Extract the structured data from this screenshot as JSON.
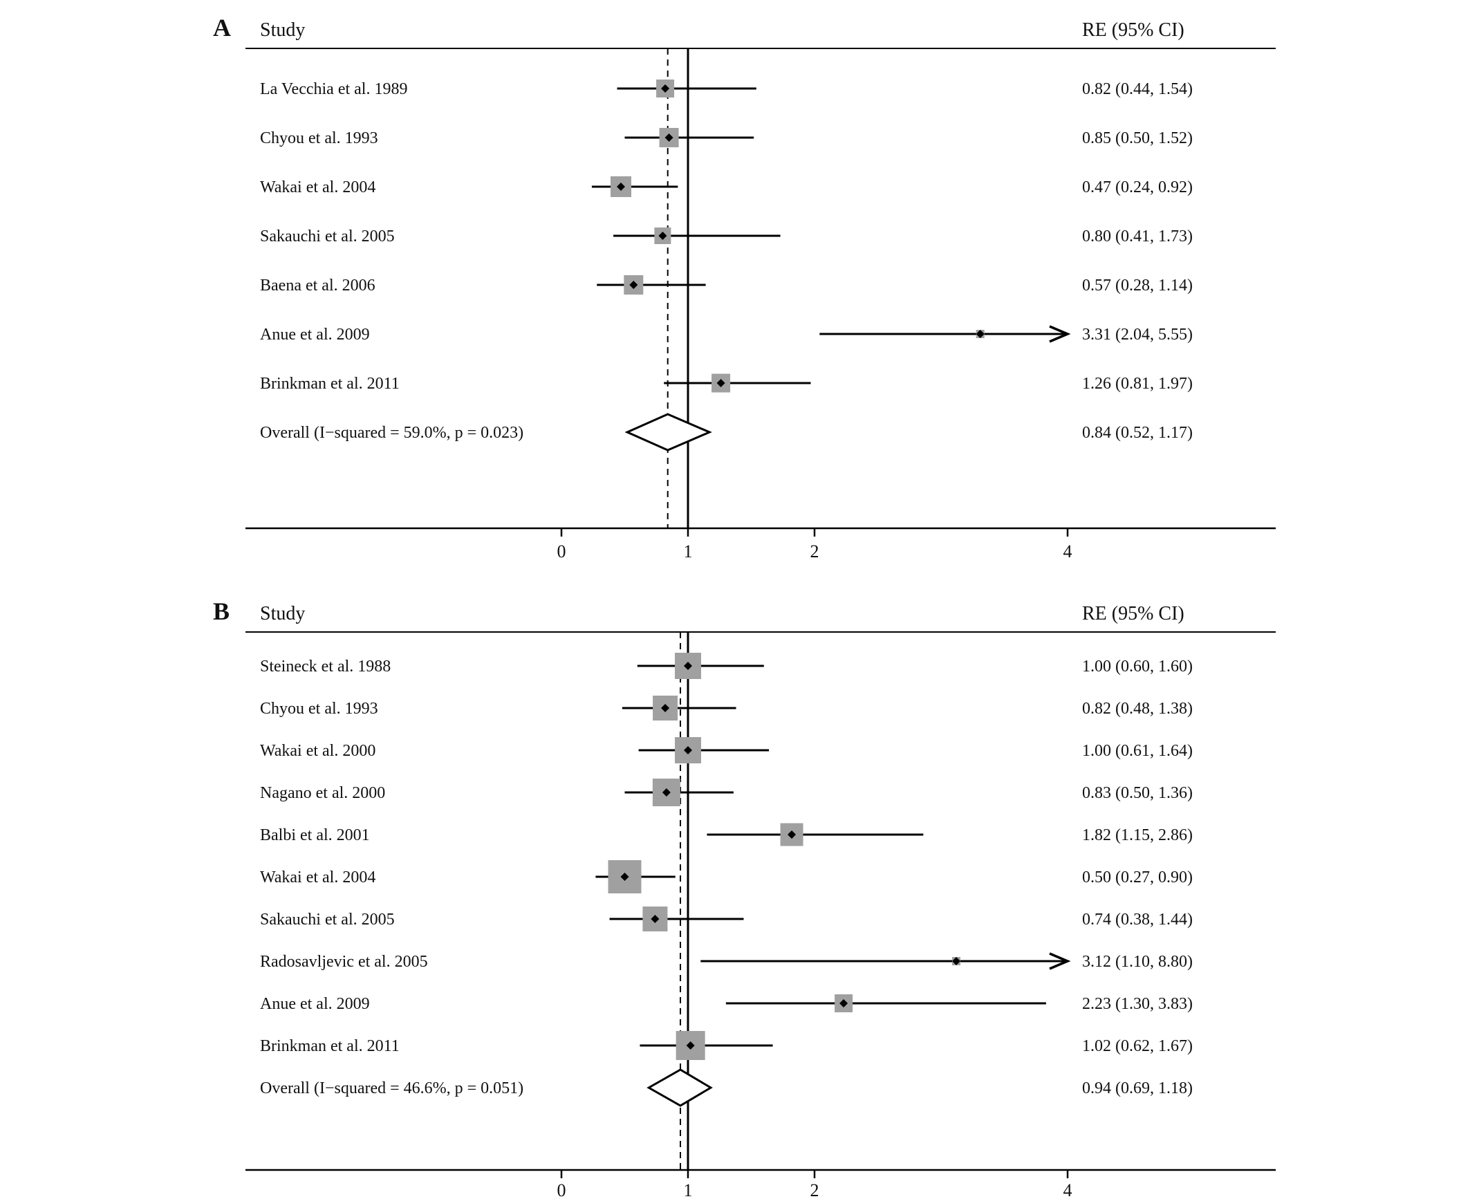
{
  "figure": {
    "background": "#ffffff"
  },
  "colors": {
    "line": "#000000",
    "box_fill": "#a0a0a0",
    "diamond_fill": "#ffffff",
    "text": "#111111"
  },
  "chart_data": [
    {
      "type": "forest",
      "panel_label": "A",
      "column_headers": {
        "study": "Study",
        "effect": "RE (95% CI)"
      },
      "x_axis": {
        "ticks": [
          0,
          1,
          2,
          4
        ],
        "reference_line": 1,
        "clip_max": 4.0,
        "scale": "linear"
      },
      "studies": [
        {
          "label": "La Vecchia et al. 1989",
          "estimate": 0.82,
          "ci_lower": 0.44,
          "ci_upper": 1.54,
          "effect_text": "0.82 (0.44, 1.54)",
          "box_size": 26
        },
        {
          "label": "Chyou et al. 1993",
          "estimate": 0.85,
          "ci_lower": 0.5,
          "ci_upper": 1.52,
          "effect_text": "0.85 (0.50, 1.52)",
          "box_size": 28
        },
        {
          "label": "Wakai et al. 2004",
          "estimate": 0.47,
          "ci_lower": 0.24,
          "ci_upper": 0.92,
          "effect_text": "0.47 (0.24, 0.92)",
          "box_size": 30
        },
        {
          "label": "Sakauchi et al. 2005",
          "estimate": 0.8,
          "ci_lower": 0.41,
          "ci_upper": 1.73,
          "effect_text": "0.80 (0.41, 1.73)",
          "box_size": 24
        },
        {
          "label": "Baena et al. 2006",
          "estimate": 0.57,
          "ci_lower": 0.28,
          "ci_upper": 1.14,
          "effect_text": "0.57 (0.28, 1.14)",
          "box_size": 28
        },
        {
          "label": "Anue et al. 2009",
          "estimate": 3.31,
          "ci_lower": 2.04,
          "ci_upper": 5.55,
          "effect_text": "3.31 (2.04, 5.55)",
          "box_size": 12
        },
        {
          "label": "Brinkman et al. 2011",
          "estimate": 1.26,
          "ci_lower": 0.81,
          "ci_upper": 1.97,
          "effect_text": "1.26 (0.81, 1.97)",
          "box_size": 27
        }
      ],
      "overall": {
        "label": "Overall  (I−squared = 59.0%, p = 0.023)",
        "estimate": 0.84,
        "ci_lower": 0.52,
        "ci_upper": 1.17,
        "effect_text": "0.84 (0.52, 1.17)"
      }
    },
    {
      "type": "forest",
      "panel_label": "B",
      "column_headers": {
        "study": "Study",
        "effect": "RE (95% CI)"
      },
      "x_axis": {
        "ticks": [
          0,
          1,
          2,
          4
        ],
        "reference_line": 1,
        "clip_max": 4.0,
        "scale": "linear"
      },
      "studies": [
        {
          "label": "Steineck et al. 1988",
          "estimate": 1.0,
          "ci_lower": 0.6,
          "ci_upper": 1.6,
          "effect_text": "1.00 (0.60, 1.60)",
          "box_size": 38
        },
        {
          "label": "Chyou et al. 1993",
          "estimate": 0.82,
          "ci_lower": 0.48,
          "ci_upper": 1.38,
          "effect_text": "0.82 (0.48, 1.38)",
          "box_size": 36
        },
        {
          "label": "Wakai et al. 2000",
          "estimate": 1.0,
          "ci_lower": 0.61,
          "ci_upper": 1.64,
          "effect_text": "1.00 (0.61, 1.64)",
          "box_size": 38
        },
        {
          "label": "Nagano et al. 2000",
          "estimate": 0.83,
          "ci_lower": 0.5,
          "ci_upper": 1.36,
          "effect_text": "0.83 (0.50, 1.36)",
          "box_size": 40
        },
        {
          "label": "Balbi et al. 2001",
          "estimate": 1.82,
          "ci_lower": 1.15,
          "ci_upper": 2.86,
          "effect_text": "1.82 (1.15, 2.86)",
          "box_size": 33
        },
        {
          "label": "Wakai et al. 2004",
          "estimate": 0.5,
          "ci_lower": 0.27,
          "ci_upper": 0.9,
          "effect_text": "0.50 (0.27, 0.90)",
          "box_size": 48
        },
        {
          "label": "Sakauchi et al. 2005",
          "estimate": 0.74,
          "ci_lower": 0.38,
          "ci_upper": 1.44,
          "effect_text": "0.74 (0.38, 1.44)",
          "box_size": 36
        },
        {
          "label": "Radosavljevic et al. 2005",
          "estimate": 3.12,
          "ci_lower": 1.1,
          "ci_upper": 8.8,
          "effect_text": "3.12 (1.10, 8.80)",
          "box_size": 12
        },
        {
          "label": "Anue et al. 2009",
          "estimate": 2.23,
          "ci_lower": 1.3,
          "ci_upper": 3.83,
          "effect_text": "2.23 (1.30, 3.83)",
          "box_size": 26
        },
        {
          "label": "Brinkman et al. 2011",
          "estimate": 1.02,
          "ci_lower": 0.62,
          "ci_upper": 1.67,
          "effect_text": "1.02 (0.62, 1.67)",
          "box_size": 42
        }
      ],
      "overall": {
        "label": "Overall  (I−squared = 46.6%, p = 0.051)",
        "estimate": 0.94,
        "ci_lower": 0.69,
        "ci_upper": 1.18,
        "effect_text": "0.94 (0.69, 1.18)"
      }
    }
  ]
}
